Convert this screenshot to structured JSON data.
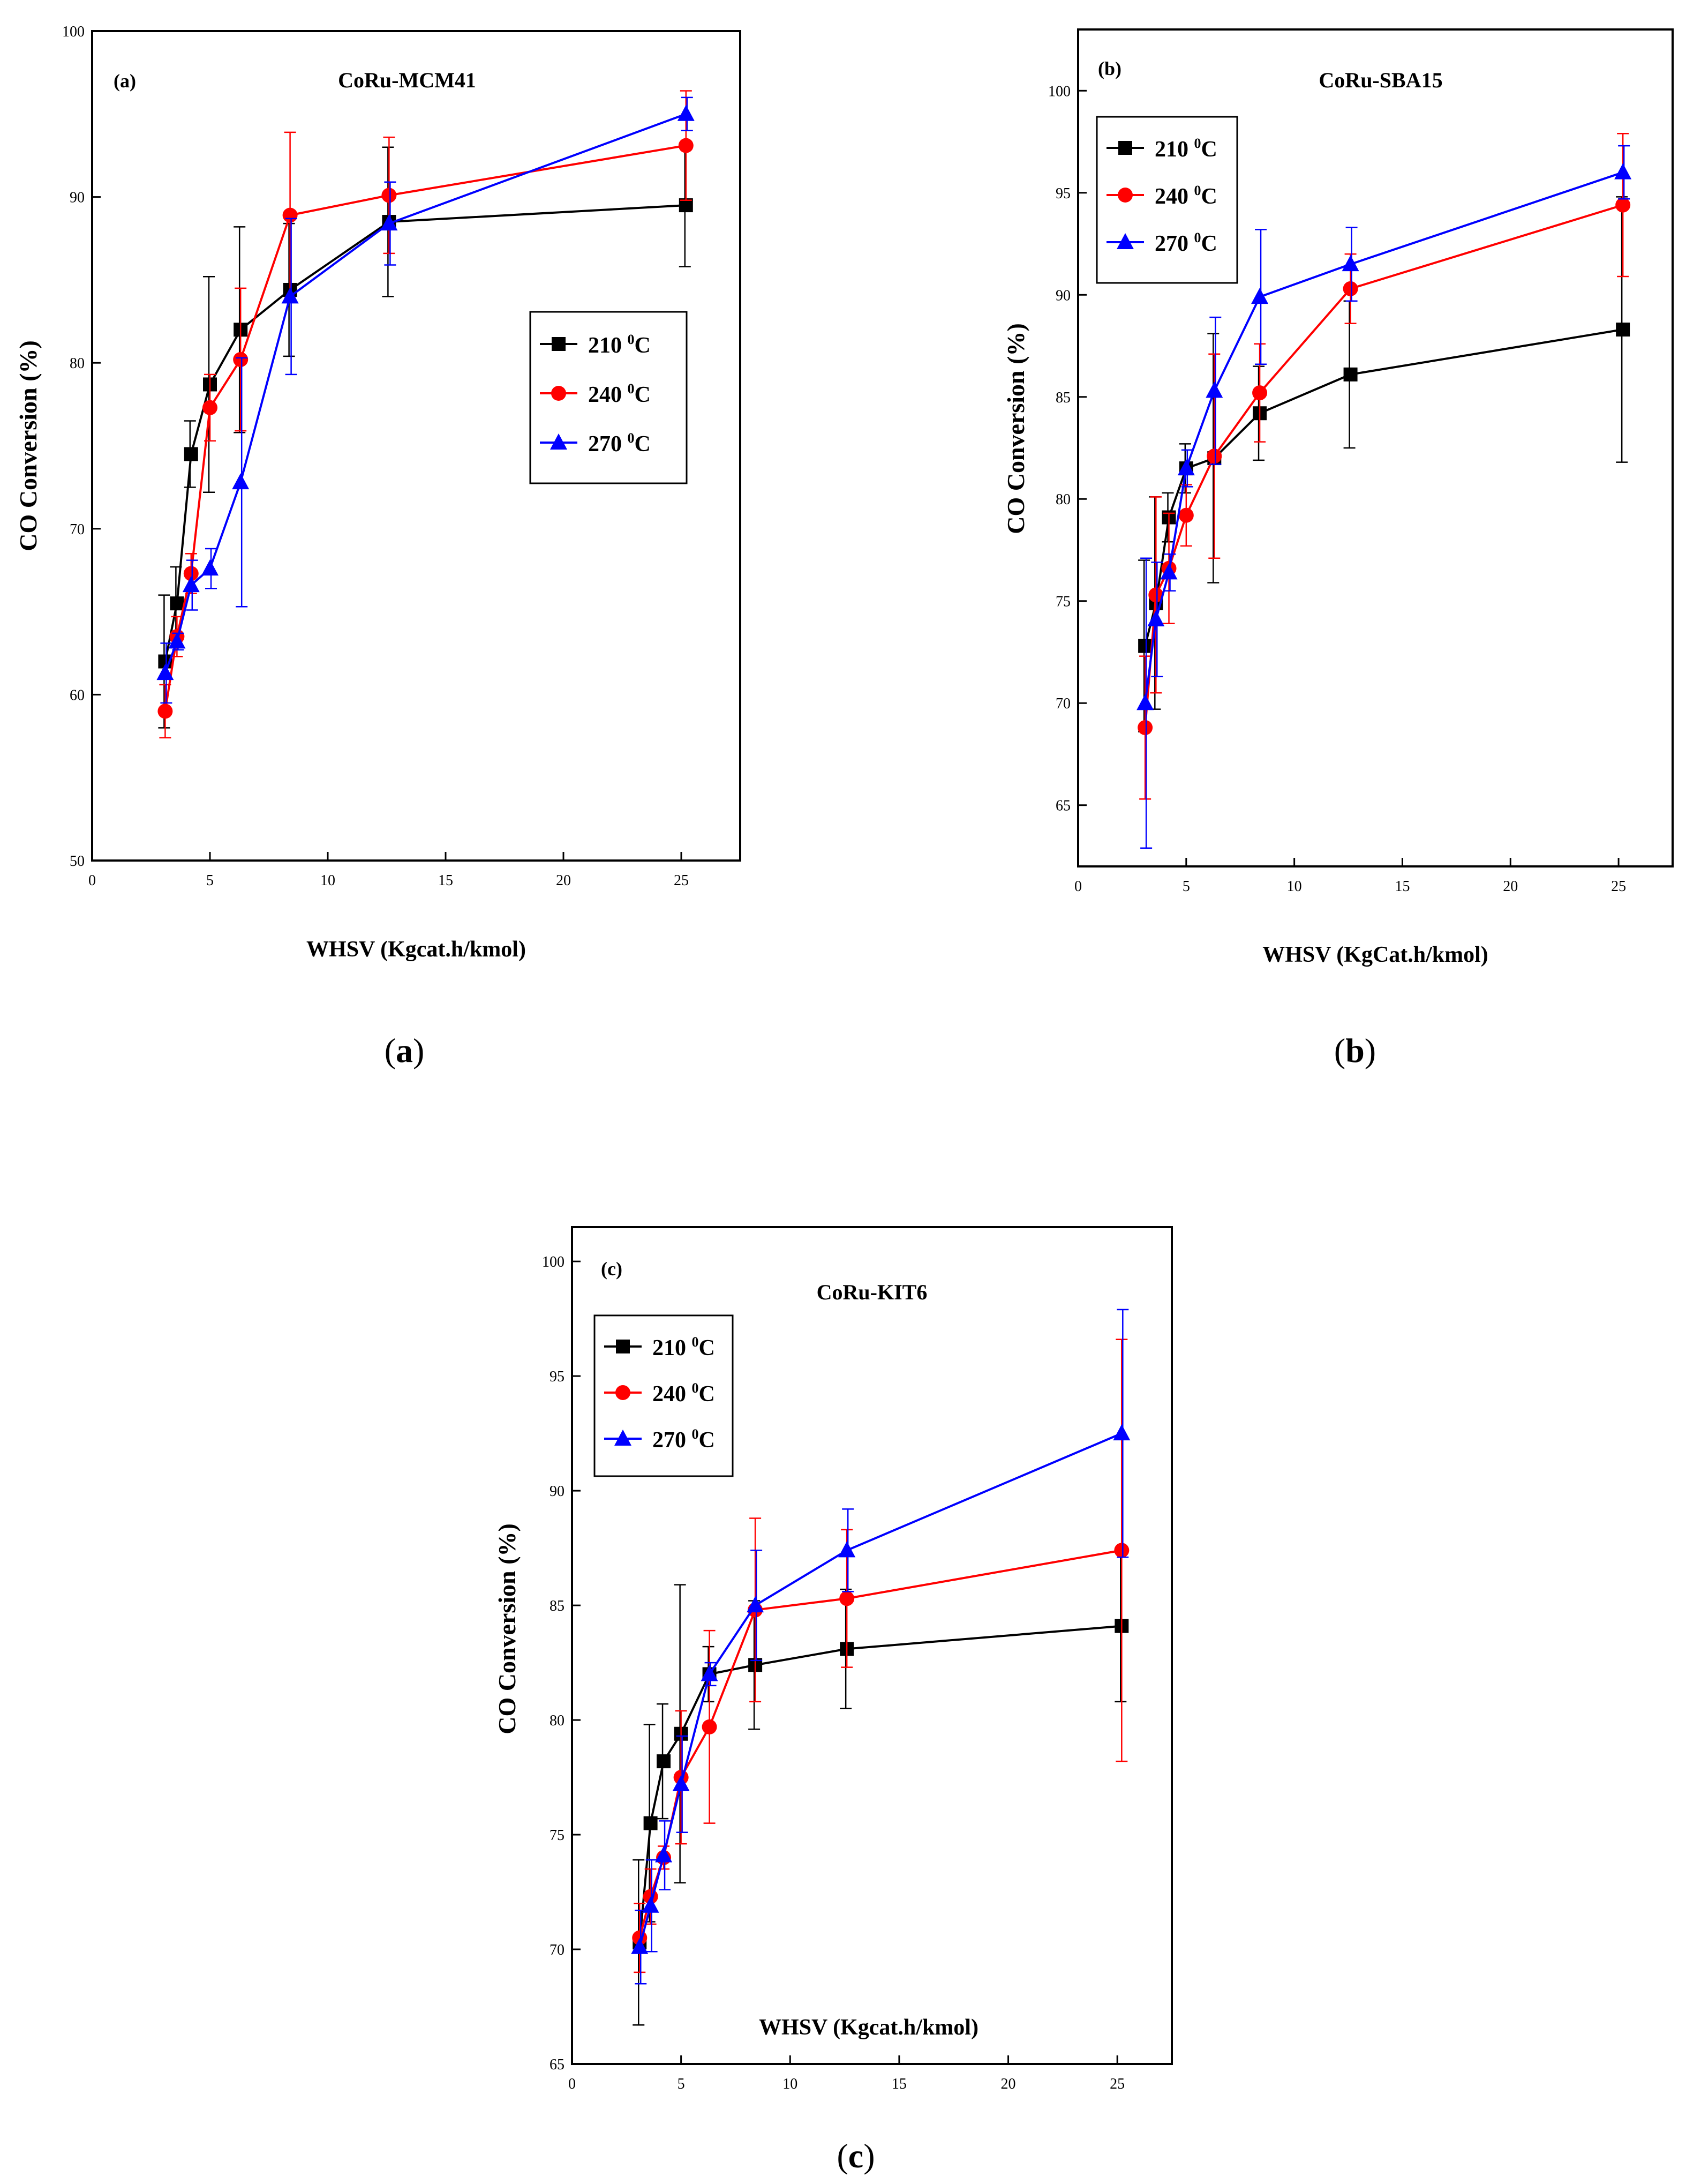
{
  "chart_data": [
    {
      "type": "line",
      "panel_tag": "(a)",
      "title": "CoRu-MCM41",
      "caption_letter": "a",
      "xlabel": "WHSV (Kgcat.h/kmol)",
      "ylabel": "CO Conversion (%)",
      "xlim": [
        0,
        27.5
      ],
      "ylim": [
        50,
        100
      ],
      "xticks": [
        0,
        5,
        10,
        15,
        20,
        25
      ],
      "yticks": [
        50,
        60,
        70,
        80,
        90,
        100
      ],
      "grid": false,
      "legend_position": "right-middle",
      "x": [
        3.1,
        3.6,
        4.2,
        5.0,
        6.3,
        8.4,
        12.6,
        25.2
      ],
      "series": [
        {
          "name": "210",
          "unit": "C",
          "sup": "0",
          "color": "#000000",
          "marker": "square",
          "values": [
            62.0,
            65.5,
            74.5,
            78.7,
            82.0,
            84.4,
            88.5,
            89.5
          ],
          "errors": [
            4.0,
            2.2,
            2.0,
            6.5,
            6.2,
            4.0,
            4.5,
            3.7
          ]
        },
        {
          "name": "240",
          "unit": "C",
          "sup": "0",
          "color": "#ff0000",
          "marker": "circle",
          "values": [
            59.0,
            63.5,
            67.3,
            77.3,
            80.2,
            88.9,
            90.1,
            93.1
          ],
          "errors": [
            1.6,
            1.2,
            1.2,
            2.0,
            4.3,
            5.0,
            3.5,
            3.3
          ]
        },
        {
          "name": "270",
          "unit": "C",
          "sup": "0",
          "color": "#0000ff",
          "marker": "triangle",
          "values": [
            61.3,
            63.2,
            66.6,
            67.6,
            72.8,
            84.0,
            88.4,
            95.0
          ],
          "errors": [
            1.8,
            0.5,
            1.5,
            1.2,
            7.5,
            4.7,
            2.5,
            1.0
          ]
        }
      ]
    },
    {
      "type": "line",
      "panel_tag": "(b)",
      "title": "CoRu-SBA15",
      "caption_letter": "b",
      "xlabel": "WHSV (KgCat.h/kmol)",
      "ylabel": "CO Conversion (%)",
      "xlim": [
        0,
        27.5
      ],
      "ylim": [
        62,
        103
      ],
      "xticks": [
        0,
        5,
        10,
        15,
        20,
        25
      ],
      "yticks": [
        65,
        70,
        75,
        80,
        85,
        90,
        95,
        100
      ],
      "grid": false,
      "legend_position": "top-left",
      "x": [
        3.1,
        3.6,
        4.2,
        5.0,
        6.3,
        8.4,
        12.6,
        25.2
      ],
      "series": [
        {
          "name": "210",
          "unit": "C",
          "sup": "0",
          "color": "#000000",
          "marker": "square",
          "values": [
            72.8,
            74.9,
            79.1,
            81.5,
            82.0,
            84.2,
            86.1,
            88.3
          ],
          "errors": [
            4.2,
            5.2,
            1.2,
            1.2,
            6.1,
            2.3,
            3.6,
            6.5
          ]
        },
        {
          "name": "240",
          "unit": "C",
          "sup": "0",
          "color": "#ff0000",
          "marker": "circle",
          "values": [
            68.8,
            75.3,
            76.6,
            79.2,
            82.1,
            85.2,
            90.3,
            94.4
          ],
          "errors": [
            3.5,
            4.8,
            2.7,
            1.5,
            5.0,
            2.4,
            1.7,
            3.5
          ]
        },
        {
          "name": "270",
          "unit": "C",
          "sup": "0",
          "color": "#0000ff",
          "marker": "triangle",
          "values": [
            70.0,
            74.1,
            76.4,
            81.5,
            85.3,
            89.9,
            91.5,
            96.0
          ],
          "errors": [
            7.1,
            2.8,
            0.9,
            0.9,
            3.6,
            3.3,
            1.8,
            1.3
          ]
        }
      ]
    },
    {
      "type": "line",
      "panel_tag": "(c)",
      "title": "CoRu-KIT6",
      "caption_letter": "c",
      "xlabel": "WHSV (Kgcat.h/kmol)",
      "ylabel": "CO Conversion (%)",
      "xlim": [
        0,
        27.5
      ],
      "ylim": [
        65,
        101.5
      ],
      "xticks": [
        0,
        5,
        10,
        15,
        20,
        25
      ],
      "yticks": [
        65,
        70,
        75,
        80,
        85,
        90,
        95,
        100
      ],
      "grid": false,
      "legend_position": "top-left",
      "x": [
        3.1,
        3.6,
        4.2,
        5.0,
        6.3,
        8.4,
        12.6,
        25.2
      ],
      "series": [
        {
          "name": "210",
          "unit": "C",
          "sup": "0",
          "color": "#000000",
          "marker": "square",
          "values": [
            70.3,
            75.5,
            78.2,
            79.4,
            82.0,
            82.4,
            83.1,
            84.1
          ],
          "errors": [
            3.6,
            4.3,
            2.5,
            6.5,
            1.2,
            2.8,
            2.6,
            3.3
          ]
        },
        {
          "name": "240",
          "unit": "C",
          "sup": "0",
          "color": "#ff0000",
          "marker": "circle",
          "values": [
            70.5,
            72.3,
            74.0,
            77.5,
            79.7,
            84.8,
            85.3,
            87.4
          ],
          "errors": [
            1.5,
            1.2,
            0.5,
            2.9,
            4.2,
            4.0,
            3.0,
            9.2
          ]
        },
        {
          "name": "270",
          "unit": "C",
          "sup": "0",
          "color": "#0000ff",
          "marker": "triangle",
          "values": [
            70.1,
            71.9,
            74.1,
            77.2,
            82.0,
            85.0,
            87.4,
            92.5
          ],
          "errors": [
            1.6,
            2.0,
            1.5,
            2.1,
            0.5,
            2.4,
            1.8,
            5.4
          ]
        }
      ]
    }
  ]
}
